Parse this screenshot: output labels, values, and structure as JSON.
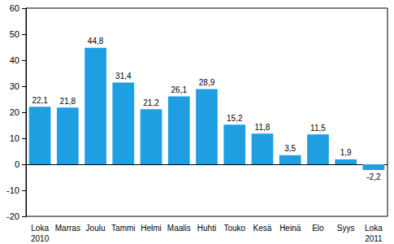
{
  "chart_data": {
    "type": "bar",
    "categories": [
      "Loka\n2010",
      "Marras",
      "Joulu",
      "Tammi",
      "Helmi",
      "Maalis",
      "Huhti",
      "Touko",
      "Kesä",
      "Heinä",
      "Elo",
      "Syys",
      "Loka\n2011"
    ],
    "values": [
      22.1,
      21.8,
      44.8,
      31.4,
      21.2,
      26.1,
      28.9,
      15.2,
      11.8,
      3.5,
      11.5,
      1.9,
      -2.2
    ],
    "value_labels": [
      "22,1",
      "21,8",
      "44,8",
      "31,4",
      "21,2",
      "26,1",
      "28,9",
      "15,2",
      "11,8",
      "3,5",
      "11,5",
      "1,9",
      "-2,2"
    ],
    "color": "#1f9fe2",
    "ylim": [
      -20,
      60
    ],
    "yticks": [
      -20,
      -10,
      0,
      10,
      20,
      30,
      40,
      50,
      60
    ],
    "grid": false,
    "data_labels": true
  }
}
